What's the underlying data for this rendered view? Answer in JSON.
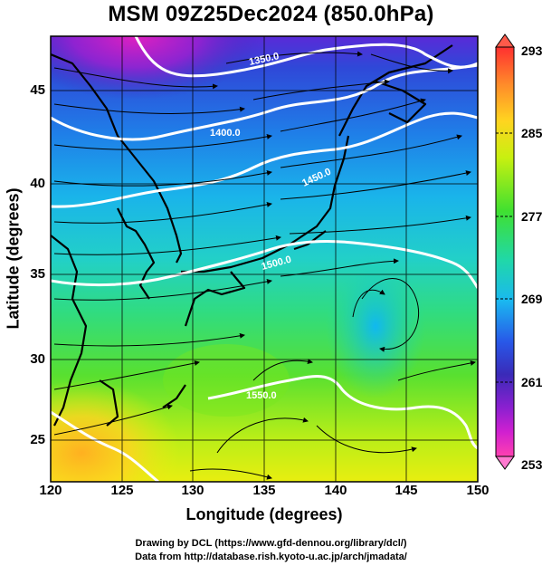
{
  "title": "MSM 09Z25Dec2024 (850.0hPa)",
  "xlabel": "Longitude (degrees)",
  "ylabel": "Latitude  (degrees)",
  "credits": {
    "line1": "Drawing by DCL (https://www.gfd-dennou.org/library/dcl/)",
    "line2": "Data from http://database.rish.kyoto-u.ac.jp/arch/jmadata/"
  },
  "map": {
    "lon_range": [
      120,
      150
    ],
    "lat_range": [
      22.5,
      47.5
    ],
    "x_ticks": [
      "120",
      "125",
      "130",
      "135",
      "140",
      "145",
      "150"
    ],
    "y_ticks": [
      "25",
      "30",
      "35",
      "40",
      "45"
    ],
    "grid": true,
    "fields": [
      "temperature (shaded)",
      "geopotential height (white contours)",
      "wind streamlines"
    ]
  },
  "contour_labels": [
    "1350.0",
    "1400.0",
    "1450.0",
    "1500.0",
    "1550.0"
  ],
  "colorbar": {
    "min": 253,
    "max": 293,
    "tick_labels": [
      "293",
      "285",
      "277",
      "269",
      "261",
      "253"
    ],
    "colors": [
      "#ff3030",
      "#ff8a2a",
      "#ffd420",
      "#c8f010",
      "#40e030",
      "#20d8a8",
      "#1ab8f0",
      "#2858e8",
      "#3a2ab8",
      "#8a20d0",
      "#d020d0",
      "#ff40b0"
    ]
  }
}
